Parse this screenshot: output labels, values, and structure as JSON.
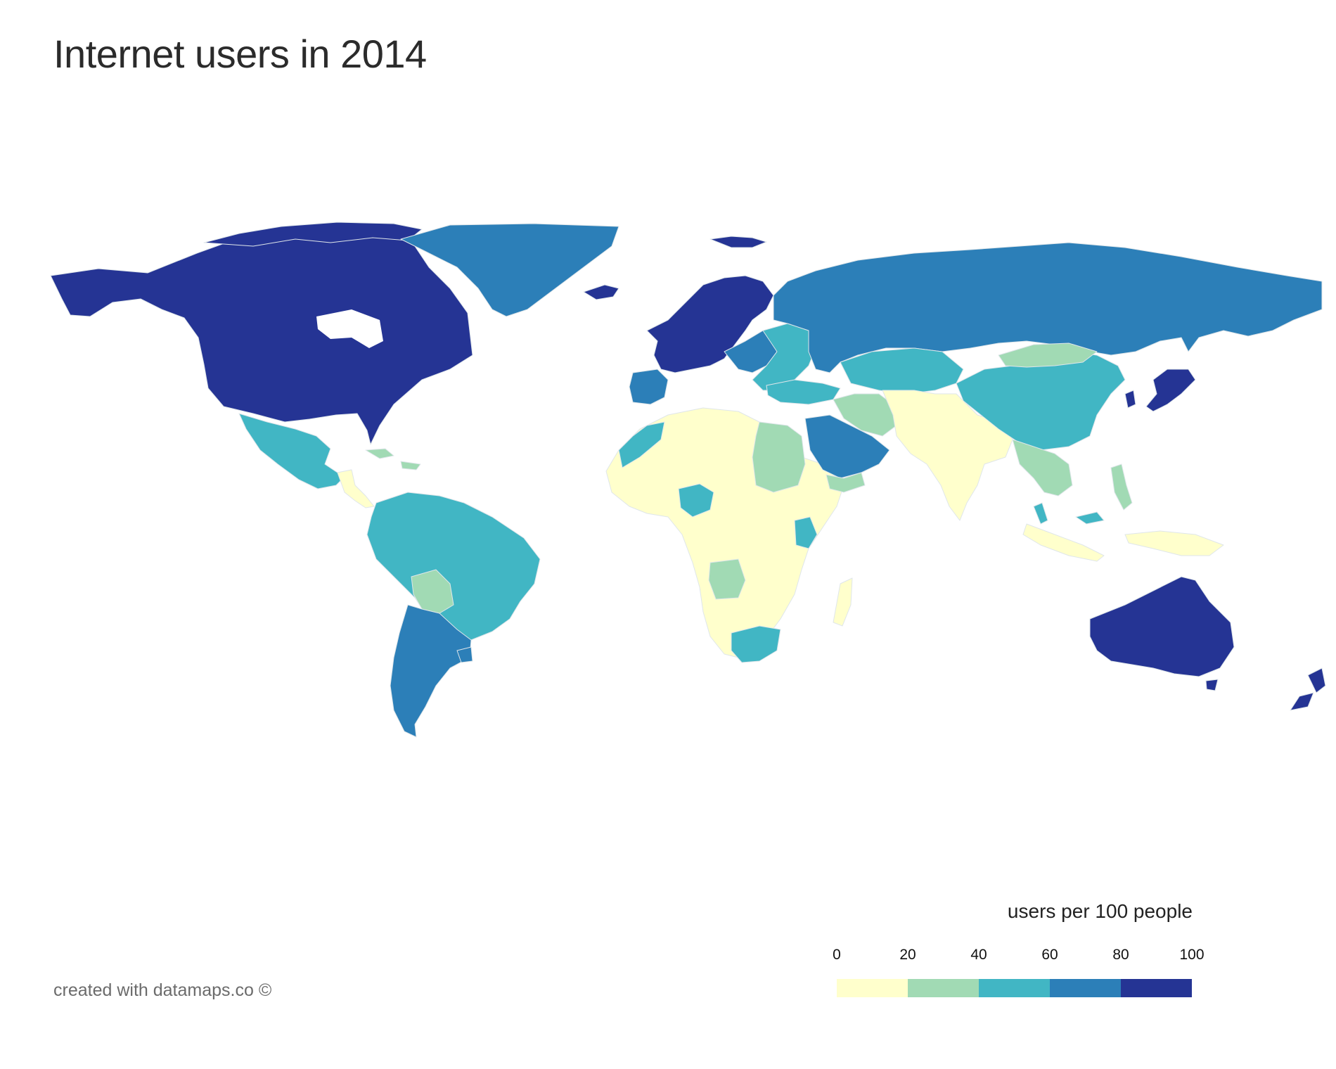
{
  "title": "Internet users in 2014",
  "credit": "created with datamaps.co ©",
  "legend": {
    "title": "users per 100 people",
    "ticks": [
      "0",
      "20",
      "40",
      "60",
      "80",
      "100"
    ],
    "bins": [
      {
        "range": "0-20",
        "color": "#ffffcc"
      },
      {
        "range": "20-40",
        "color": "#a1dab4"
      },
      {
        "range": "40-60",
        "color": "#41b6c4"
      },
      {
        "range": "60-80",
        "color": "#2c7fb8"
      },
      {
        "range": "80-100",
        "color": "#253494"
      }
    ]
  },
  "regions": [
    {
      "name": "canada-usa",
      "bin": 4
    },
    {
      "name": "greenland",
      "bin": 3
    },
    {
      "name": "mexico",
      "bin": 2
    },
    {
      "name": "central-america",
      "bin": 0
    },
    {
      "name": "caribbean",
      "bin": 1
    },
    {
      "name": "south-america-north",
      "bin": 2
    },
    {
      "name": "bolivia",
      "bin": 1
    },
    {
      "name": "argentina-chile",
      "bin": 3
    },
    {
      "name": "uruguay",
      "bin": 3
    },
    {
      "name": "western-europe",
      "bin": 4
    },
    {
      "name": "iceland",
      "bin": 4
    },
    {
      "name": "svalbard",
      "bin": 4
    },
    {
      "name": "iberia",
      "bin": 3
    },
    {
      "name": "eastern-europe",
      "bin": 2
    },
    {
      "name": "central-europe",
      "bin": 3
    },
    {
      "name": "russia",
      "bin": 3
    },
    {
      "name": "turkey",
      "bin": 2
    },
    {
      "name": "north-africa-west",
      "bin": 2
    },
    {
      "name": "africa",
      "bin": 0
    },
    {
      "name": "egypt-sudan",
      "bin": 1
    },
    {
      "name": "nigeria",
      "bin": 2
    },
    {
      "name": "kenya",
      "bin": 2
    },
    {
      "name": "angola",
      "bin": 1
    },
    {
      "name": "south-africa",
      "bin": 2
    },
    {
      "name": "madagascar",
      "bin": 0
    },
    {
      "name": "arabia",
      "bin": 3
    },
    {
      "name": "yemen",
      "bin": 1
    },
    {
      "name": "iran",
      "bin": 1
    },
    {
      "name": "central-asia",
      "bin": 2
    },
    {
      "name": "south-asia",
      "bin": 0
    },
    {
      "name": "china",
      "bin": 2
    },
    {
      "name": "mongolia",
      "bin": 1
    },
    {
      "name": "japan-korea",
      "bin": 4
    },
    {
      "name": "southeast-asia",
      "bin": 1
    },
    {
      "name": "malaysia",
      "bin": 2
    },
    {
      "name": "indonesia",
      "bin": 0
    },
    {
      "name": "philippines",
      "bin": 1
    },
    {
      "name": "australia",
      "bin": 4
    },
    {
      "name": "new-zealand",
      "bin": 4
    }
  ]
}
